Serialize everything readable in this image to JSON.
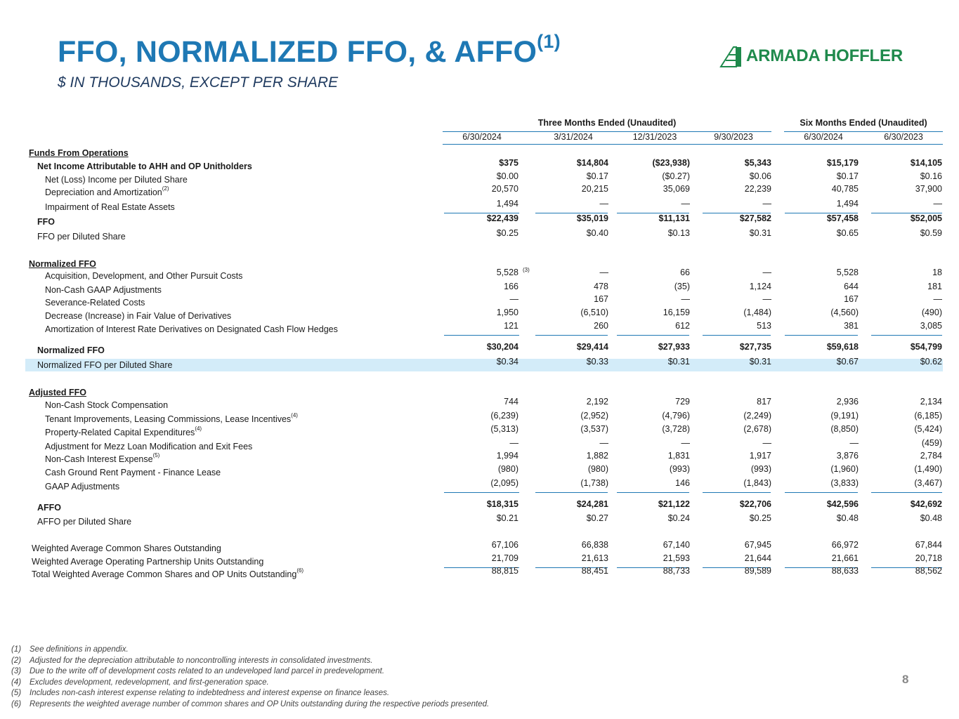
{
  "header": {
    "title": "FFO, NORMALIZED FFO, & AFFO",
    "title_sup": "(1)",
    "subtitle": "$ IN THOUSANDS, EXCEPT PER SHARE",
    "logo_text": "ARMADA HOFFLER"
  },
  "table": {
    "groups": [
      "Three Months Ended (Unaudited)",
      "Six Months Ended (Unaudited)"
    ],
    "columns": [
      "6/30/2024",
      "3/31/2024",
      "12/31/2023",
      "9/30/2023",
      "6/30/2024",
      "6/30/2023"
    ],
    "rows": [
      {
        "label": "Funds From Operations",
        "values": [
          "",
          "",
          "",
          "",
          "",
          ""
        ]
      },
      {
        "label": "Net Income Attributable to AHH and OP Unitholders",
        "values": [
          "$375",
          "$14,804",
          "($23,938)",
          "$5,343",
          "$15,179",
          "$14,105"
        ]
      },
      {
        "label": "Net (Loss) Income per Diluted Share",
        "values": [
          "$0.00",
          "$0.17",
          "($0.27)",
          "$0.06",
          "$0.17",
          "$0.16"
        ]
      },
      {
        "label": "Depreciation and Amortization",
        "sup": "(2)",
        "values": [
          "20,570",
          "20,215",
          "35,069",
          "22,239",
          "40,785",
          "37,900"
        ]
      },
      {
        "label": "Impairment of Real Estate Assets",
        "values": [
          "1,494",
          "—",
          "—",
          "—",
          "1,494",
          "—"
        ]
      },
      {
        "label": "FFO",
        "values": [
          "$22,439",
          "$35,019",
          "$11,131",
          "$27,582",
          "$57,458",
          "$52,005"
        ]
      },
      {
        "label": "FFO per Diluted Share",
        "values": [
          "$0.25",
          "$0.40",
          "$0.13",
          "$0.31",
          "$0.65",
          "$0.59"
        ]
      },
      {
        "label": "Normalized FFO",
        "values": [
          "",
          "",
          "",
          "",
          "",
          ""
        ]
      },
      {
        "label": "Acquisition, Development, and Other Pursuit Costs",
        "note": "(3)",
        "values": [
          "5,528",
          "—",
          "66",
          "—",
          "5,528",
          "18"
        ]
      },
      {
        "label": "Non-Cash GAAP Adjustments",
        "values": [
          "166",
          "478",
          "(35)",
          "1,124",
          "644",
          "181"
        ]
      },
      {
        "label": "Severance-Related Costs",
        "values": [
          "—",
          "167",
          "—",
          "—",
          "167",
          "—"
        ]
      },
      {
        "label": "Decrease (Increase) in Fair Value of Derivatives",
        "values": [
          "1,950",
          "(6,510)",
          "16,159",
          "(1,484)",
          "(4,560)",
          "(490)"
        ]
      },
      {
        "label": "Amortization of Interest Rate Derivatives on Designated Cash Flow Hedges",
        "values": [
          "121",
          "260",
          "612",
          "513",
          "381",
          "3,085"
        ]
      },
      {
        "label": "Normalized FFO",
        "values": [
          "$30,204",
          "$29,414",
          "$27,933",
          "$27,735",
          "$59,618",
          "$54,799"
        ]
      },
      {
        "label": "Normalized FFO per Diluted Share",
        "values": [
          "$0.34",
          "$0.33",
          "$0.31",
          "$0.31",
          "$0.67",
          "$0.62"
        ]
      },
      {
        "label": "Adjusted FFO",
        "values": [
          "",
          "",
          "",
          "",
          "",
          ""
        ]
      },
      {
        "label": "Non-Cash Stock Compensation",
        "values": [
          "744",
          "2,192",
          "729",
          "817",
          "2,936",
          "2,134"
        ]
      },
      {
        "label": "Tenant Improvements, Leasing Commissions, Lease Incentives",
        "sup": "(4)",
        "values": [
          "(6,239)",
          "(2,952)",
          "(4,796)",
          "(2,249)",
          "(9,191)",
          "(6,185)"
        ]
      },
      {
        "label": "Property-Related Capital Expenditures",
        "sup": "(4)",
        "values": [
          "(5,313)",
          "(3,537)",
          "(3,728)",
          "(2,678)",
          "(8,850)",
          "(5,424)"
        ]
      },
      {
        "label": "Adjustment for Mezz Loan Modification and Exit Fees",
        "values": [
          "—",
          "—",
          "—",
          "—",
          "—",
          "(459)"
        ]
      },
      {
        "label": "Non-Cash Interest Expense",
        "sup": "(5)",
        "values": [
          "1,994",
          "1,882",
          "1,831",
          "1,917",
          "3,876",
          "2,784"
        ]
      },
      {
        "label": "Cash Ground Rent Payment - Finance Lease",
        "values": [
          "(980)",
          "(980)",
          "(993)",
          "(993)",
          "(1,960)",
          "(1,490)"
        ]
      },
      {
        "label": "GAAP Adjustments",
        "values": [
          "(2,095)",
          "(1,738)",
          "146",
          "(1,843)",
          "(3,833)",
          "(3,467)"
        ]
      },
      {
        "label": "AFFO",
        "values": [
          "$18,315",
          "$24,281",
          "$21,122",
          "$22,706",
          "$42,596",
          "$42,692"
        ]
      },
      {
        "label": "AFFO per Diluted Share",
        "values": [
          "$0.21",
          "$0.27",
          "$0.24",
          "$0.25",
          "$0.48",
          "$0.48"
        ]
      },
      {
        "label": "Weighted Average Common Shares Outstanding",
        "values": [
          "67,106",
          "66,838",
          "67,140",
          "67,945",
          "66,972",
          "67,844"
        ]
      },
      {
        "label": "Weighted Average Operating Partnership Units Outstanding",
        "values": [
          "21,709",
          "21,613",
          "21,593",
          "21,644",
          "21,661",
          "20,718"
        ]
      },
      {
        "label": "Total Weighted Average Common Shares and OP Units Outstanding",
        "sup": "(6)",
        "values": [
          "88,815",
          "88,451",
          "88,733",
          "89,589",
          "88,633",
          "88,562"
        ]
      }
    ]
  },
  "footnotes": [
    {
      "num": "(1)",
      "text": "See definitions in appendix."
    },
    {
      "num": "(2)",
      "text": "Adjusted for the depreciation attributable to noncontrolling interests in consolidated investments."
    },
    {
      "num": "(3)",
      "text": "Due to the write off of development costs related to an undeveloped land parcel in predevelopment."
    },
    {
      "num": "(4)",
      "text": "Excludes development, redevelopment, and first-generation space."
    },
    {
      "num": "(5)",
      "text": "Includes non-cash interest expense relating to indebtedness and interest expense on finance leases."
    },
    {
      "num": "(6)",
      "text": "Represents the weighted average number of common shares and OP Units outstanding during the respective periods presented."
    }
  ],
  "page_number": "8",
  "colors": {
    "accent": "#1e78b4",
    "brand_green": "#1f8a4c",
    "highlight": "#d3ecf9"
  }
}
